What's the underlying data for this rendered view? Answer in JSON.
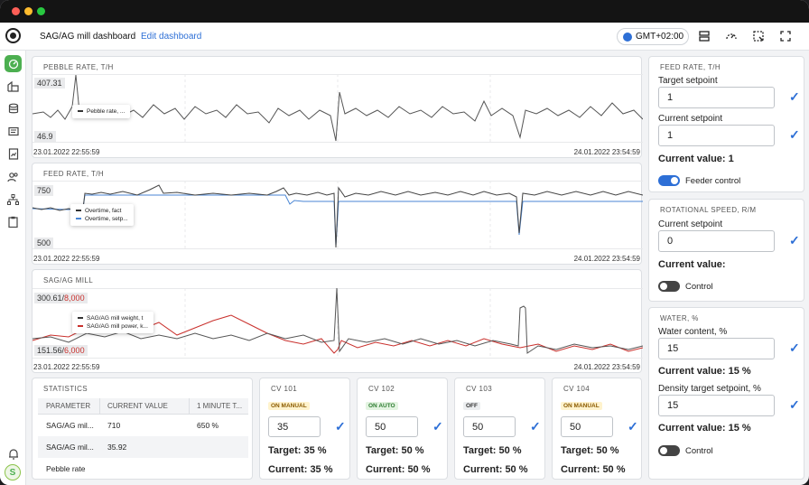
{
  "header": {
    "title": "SAG/AG mill dashboard",
    "edit_link": "Edit dashboard",
    "timezone": "GMT+02:00"
  },
  "colors": {
    "accent": "#2d6fd6",
    "active_nav": "#4caf50",
    "series_dark": "#333333",
    "series_blue": "#4a86d4",
    "series_red": "#c9302c"
  },
  "charts": {
    "pebble": {
      "title": "PEBBLE RATE, T/H",
      "y_max": "407.31",
      "y_min": "46.9",
      "start": "23.01.2022 22:55:59",
      "end": "24.01.2022 23:54:59",
      "legend": [
        "Pebble rate, ..."
      ]
    },
    "feed": {
      "title": "FEED RATE, T/H",
      "y_max": "750",
      "y_min": "500",
      "start": "23.01.2022 22:55:59",
      "end": "24.01.2022 23:54:59",
      "legend": [
        "Overtime, fact",
        "Overtime, setp..."
      ]
    },
    "mill": {
      "title": "SAG/AG MILL",
      "y_max_a": "300.61",
      "y_max_b": "8,000",
      "y_min_a": "151.56",
      "y_min_b": "6,000",
      "start": "23.01.2022 22:55:59",
      "end": "24.01.2022 23:54:59",
      "legend": [
        "SAG/AG mill weight, t",
        "SAG/AG mill power, k..."
      ]
    }
  },
  "statistics": {
    "title": "STATISTICS",
    "headers": [
      "PARAMETER",
      "CURRENT VALUE",
      "1 MINUTE T..."
    ],
    "rows": [
      [
        "SAG/AG mil...",
        "710",
        "650 %"
      ],
      [
        "SAG/AG mil...",
        "35.92",
        ""
      ],
      [
        "Pebble rate",
        "",
        ""
      ]
    ]
  },
  "cvs": [
    {
      "title": "CV 101",
      "status": "ON MANUAL",
      "value": "35",
      "target": "Target: 35 %",
      "current": "Current: 35 %"
    },
    {
      "title": "CV 102",
      "status": "ON AUTO",
      "value": "50",
      "target": "Target: 50 %",
      "current": "Current: 50 %"
    },
    {
      "title": "CV 103",
      "status": "OFF",
      "value": "50",
      "target": "Target: 50 %",
      "current": "Current: 50 %"
    },
    {
      "title": "CV 104",
      "status": "ON MANUAL",
      "value": "50",
      "target": "Target: 50 %",
      "current": "Current: 50 %"
    }
  ],
  "feed_panel": {
    "title": "FEED RATE, T/H",
    "target_label": "Target setpoint",
    "target_value": "1",
    "current_label": "Current setpoint",
    "current_value": "1",
    "value_text": "Current value: 1",
    "toggle_label": "Feeder control",
    "toggle_on": true
  },
  "speed_panel": {
    "title": "ROTATIONAL SPEED, R/M",
    "current_label": "Current setpoint",
    "current_value": "0",
    "value_text": "Current value:",
    "toggle_label": "Control",
    "toggle_on": false
  },
  "water_panel": {
    "title": "WATER, %",
    "content_label": "Water content, %",
    "content_value": "15",
    "value_text": "Current value: 15 %",
    "density_label": "Density target setpoint, %",
    "density_value": "15",
    "density_value_text": "Current value: 15 %",
    "toggle_label": "Control",
    "toggle_on": false
  }
}
